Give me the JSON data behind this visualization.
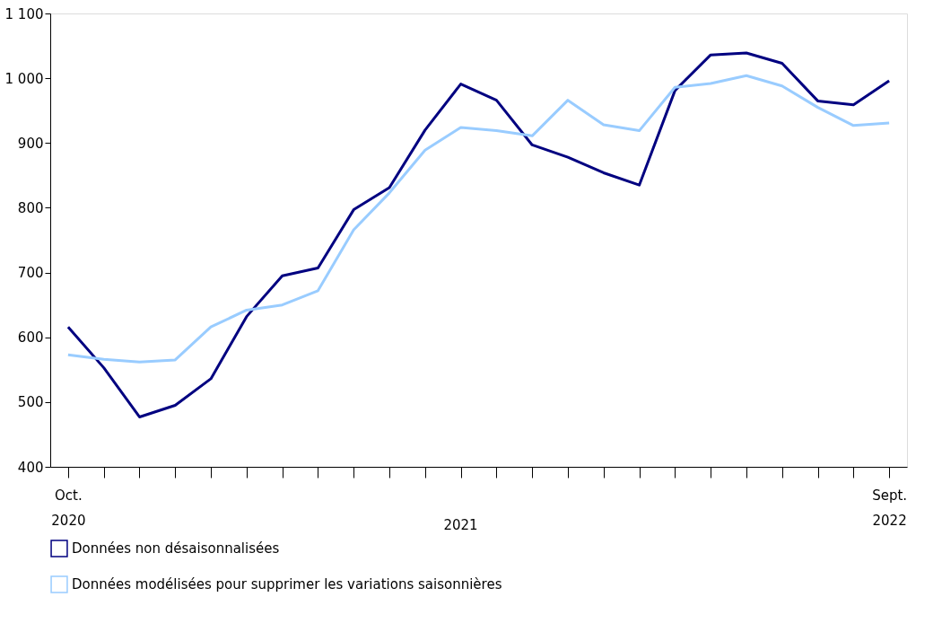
{
  "chart_data": {
    "type": "line",
    "categories": [
      "Oct.\n2020",
      null,
      null,
      null,
      null,
      null,
      null,
      null,
      null,
      null,
      null,
      null,
      null,
      null,
      null,
      null,
      null,
      null,
      null,
      null,
      null,
      null,
      null,
      "Sept.\n2022"
    ],
    "series": [
      {
        "name": "Données non désaisonnalisées",
        "color": "#000080",
        "values": [
          616,
          553,
          477,
          495,
          536,
          632,
          695,
          707,
          797,
          831,
          920,
          991,
          966,
          897,
          878,
          854,
          835,
          981,
          1036,
          1039,
          1023,
          965,
          959,
          996
        ]
      },
      {
        "name": "Données modélisées pour supprimer les variations saisonnières",
        "color": "#99ccff",
        "values": [
          573,
          566,
          562,
          565,
          616,
          642,
          650,
          672,
          766,
          823,
          889,
          924,
          919,
          911,
          966,
          928,
          919,
          986,
          992,
          1004,
          988,
          955,
          927,
          931
        ]
      }
    ],
    "ylim": [
      400,
      1100
    ],
    "yticks": [
      400,
      500,
      600,
      700,
      800,
      900,
      {
        "value": 1000,
        "label": "1 000"
      },
      {
        "value": 1100,
        "label": "1 100"
      }
    ],
    "annotations": [
      "2021"
    ],
    "grid": false,
    "legend": "bottom",
    "marker": "none",
    "line_style": "solid"
  }
}
